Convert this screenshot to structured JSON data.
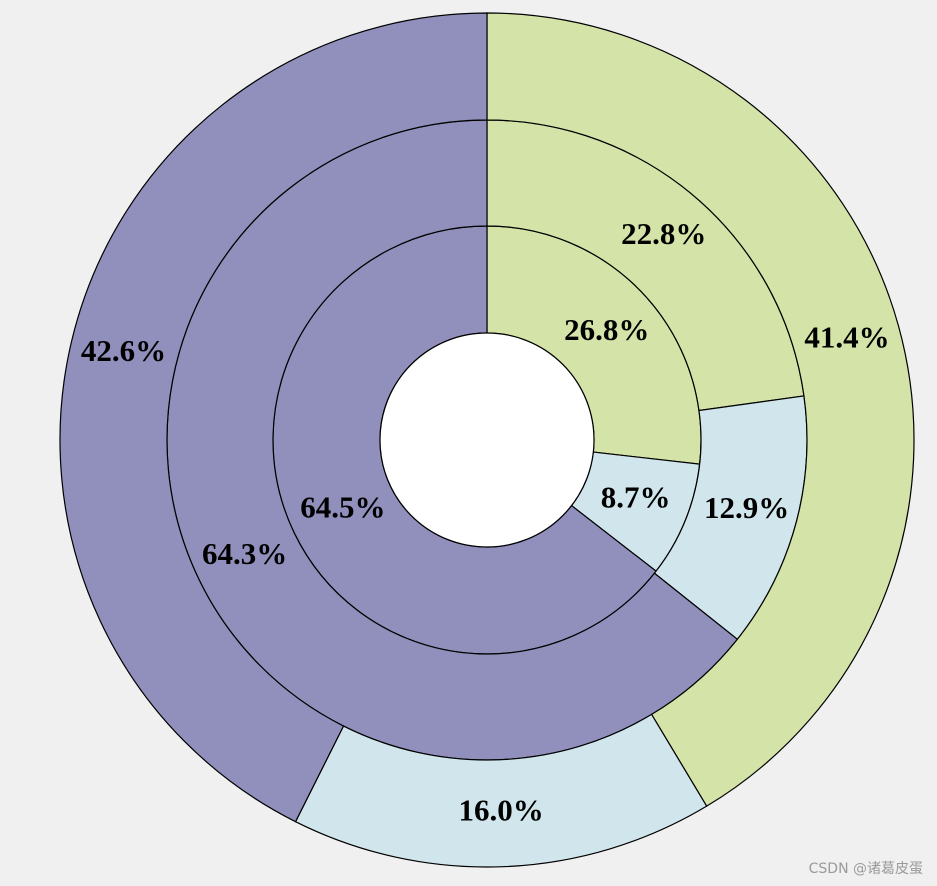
{
  "chart_data": {
    "type": "pie",
    "subtype": "nested-donut",
    "colors": [
      "#d4e3a7",
      "#d1e6ec",
      "#9190bd"
    ],
    "center_color": "#ffffff",
    "start_angle": "12 o'clock",
    "direction": "clockwise",
    "rings": [
      {
        "values": [
          26.8,
          8.7,
          64.5
        ],
        "labels": [
          "26.8%",
          "8.7%",
          "64.5%"
        ]
      },
      {
        "values": [
          22.8,
          12.9,
          64.3
        ],
        "labels": [
          "22.8%",
          "12.9%",
          "64.3%"
        ]
      },
      {
        "values": [
          41.4,
          16.0,
          42.6
        ],
        "labels": [
          "41.4%",
          "16.0%",
          "42.6%"
        ]
      }
    ]
  },
  "watermark": "CSDN @诸葛皮蛋"
}
